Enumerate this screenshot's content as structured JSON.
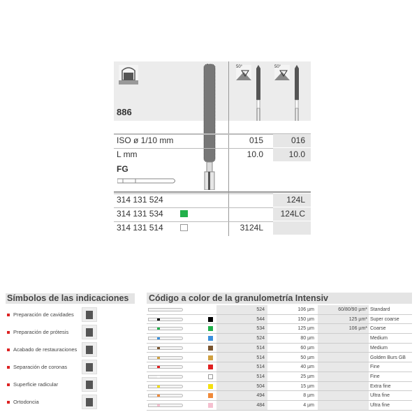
{
  "product": {
    "model": "886",
    "indication_icon": "protesis-icon",
    "angle_labels": [
      "50°",
      "50°"
    ],
    "rows": [
      {
        "label": "ISO ø 1/10 mm",
        "c1": "015",
        "c2": "016"
      },
      {
        "label": "L mm",
        "c1": "10.0",
        "c2": "10.0"
      }
    ],
    "shank": "FG",
    "refs": [
      {
        "code": "314 131 524",
        "color": null,
        "c1": "",
        "c2": "124L"
      },
      {
        "code": "314 131 534",
        "color": "#22b04a",
        "c1": "",
        "c2": "124LC"
      },
      {
        "code": "314 131 514",
        "color": "#ffffff",
        "c1": "3124L",
        "c2": ""
      }
    ]
  },
  "symbols": {
    "title": "Símbolos de las indicaciones",
    "items": [
      {
        "label": "Preparación de cavidades",
        "icon": "cavity-icon"
      },
      {
        "label": "Preparación de prótesis",
        "icon": "prosthesis-icon"
      },
      {
        "label": "Acabado de restauraciones",
        "icon": "restoration-icon"
      },
      {
        "label": "Separación de coronas",
        "icon": "crown-separation-icon"
      },
      {
        "label": "Superficie radicular",
        "icon": "root-surface-icon"
      },
      {
        "label": "Ortodoncia",
        "icon": "orthodontics-icon"
      }
    ]
  },
  "grit": {
    "title": "Código a color de la granulometría Intensiv",
    "rows": [
      {
        "color": null,
        "code": "524",
        "size": "106 µm",
        "alt": "60/80/90 µm*",
        "name": "Standard"
      },
      {
        "color": "#000000",
        "code": "544",
        "size": "150 µm",
        "alt": "125 µm*",
        "name": "Super coarse"
      },
      {
        "color": "#1fb04a",
        "code": "534",
        "size": "125 µm",
        "alt": "106 µm*",
        "name": "Coarse"
      },
      {
        "color": "#3a8fdc",
        "code": "524",
        "size": "80 µm",
        "alt": "",
        "name": "Medium"
      },
      {
        "color": "#7a5530",
        "code": "514",
        "size": "60 µm",
        "alt": "",
        "name": "Medium"
      },
      {
        "color": "#d0a040",
        "code": "514",
        "size": "50 µm",
        "alt": "",
        "name": "Golden Burs GB"
      },
      {
        "color": "#e02020",
        "code": "514",
        "size": "40 µm",
        "alt": "",
        "name": "Fine"
      },
      {
        "color": "#ffffff",
        "code": "514",
        "size": "25 µm",
        "alt": "",
        "name": "Fine"
      },
      {
        "color": "#f5e010",
        "code": "504",
        "size": "15 µm",
        "alt": "",
        "name": "Extra fine"
      },
      {
        "color": "#f08a3a",
        "code": "494",
        "size": "8 µm",
        "alt": "",
        "name": "Ultra fine"
      },
      {
        "color": "#f5c0d0",
        "code": "484",
        "size": "4 µm",
        "alt": "",
        "name": "Ultra fine"
      }
    ]
  }
}
